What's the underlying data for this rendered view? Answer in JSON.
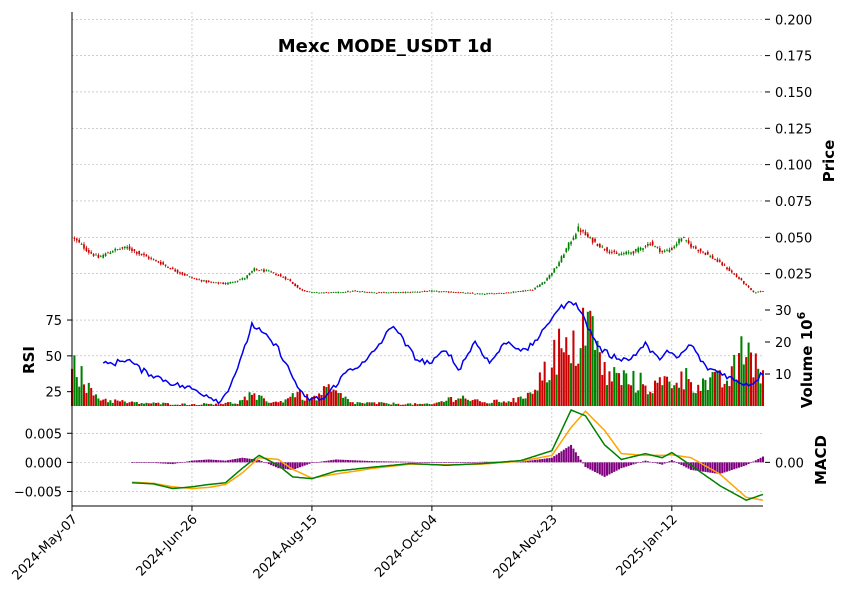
{
  "chart_data": {
    "type": "financial",
    "title": "Mexc MODE_USDT 1d",
    "x": {
      "start": "2024-05-07",
      "end": "2025-02-19",
      "tick_labels": [
        "2024-May-07",
        "2024-Jun-26",
        "2024-Aug-15",
        "2024-Oct-04",
        "2024-Nov-23",
        "2025-Jan-12"
      ]
    },
    "colors": {
      "up": "#008000",
      "down": "#cc0000",
      "rsi": "#0000ee",
      "macd_line": "#008000",
      "signal_line": "#ffa500",
      "histogram": "#800080",
      "grid": "#b0b0b0"
    },
    "price_panel": {
      "ylabel": "Price",
      "ylim": [
        0.0,
        0.205
      ],
      "ticks": [
        "0.200",
        "0.175",
        "0.150",
        "0.125",
        "0.100",
        "0.075",
        "0.050",
        "0.025"
      ],
      "tick_values": [
        0.2,
        0.175,
        0.15,
        0.125,
        0.1,
        0.075,
        0.05,
        0.025
      ],
      "close_anchors": [
        [
          "2024-05-07",
          0.05
        ],
        [
          "2024-05-10",
          0.046
        ],
        [
          "2024-05-14",
          0.04
        ],
        [
          "2024-05-18",
          0.036
        ],
        [
          "2024-05-24",
          0.041
        ],
        [
          "2024-05-30",
          0.043
        ],
        [
          "2024-06-05",
          0.038
        ],
        [
          "2024-06-12",
          0.033
        ],
        [
          "2024-06-19",
          0.027
        ],
        [
          "2024-06-26",
          0.022
        ],
        [
          "2024-07-03",
          0.019
        ],
        [
          "2024-07-10",
          0.018
        ],
        [
          "2024-07-18",
          0.022
        ],
        [
          "2024-07-22",
          0.028
        ],
        [
          "2024-07-29",
          0.026
        ],
        [
          "2024-08-05",
          0.021
        ],
        [
          "2024-08-10",
          0.014
        ],
        [
          "2024-08-15",
          0.012
        ],
        [
          "2024-08-25",
          0.012
        ],
        [
          "2024-09-01",
          0.013
        ],
        [
          "2024-09-10",
          0.012
        ],
        [
          "2024-09-20",
          0.012
        ],
        [
          "2024-10-04",
          0.013
        ],
        [
          "2024-10-15",
          0.012
        ],
        [
          "2024-10-25",
          0.011
        ],
        [
          "2024-11-05",
          0.012
        ],
        [
          "2024-11-15",
          0.014
        ],
        [
          "2024-11-20",
          0.02
        ],
        [
          "2024-11-25",
          0.03
        ],
        [
          "2024-11-30",
          0.045
        ],
        [
          "2024-12-04",
          0.056
        ],
        [
          "2024-12-08",
          0.05
        ],
        [
          "2024-12-14",
          0.043
        ],
        [
          "2024-12-20",
          0.038
        ],
        [
          "2024-12-27",
          0.04
        ],
        [
          "2025-01-03",
          0.046
        ],
        [
          "2025-01-08",
          0.04
        ],
        [
          "2025-01-12",
          0.042
        ],
        [
          "2025-01-16",
          0.05
        ],
        [
          "2025-01-20",
          0.044
        ],
        [
          "2025-01-27",
          0.038
        ],
        [
          "2025-02-03",
          0.03
        ],
        [
          "2025-02-10",
          0.02
        ],
        [
          "2025-02-15",
          0.012
        ],
        [
          "2025-02-19",
          0.013
        ]
      ],
      "first_day_high": 0.205,
      "volume": {
        "ylabel": "Volume  10^6",
        "ylim": [
          0,
          30
        ],
        "ticks": [
          "30",
          "20",
          "10"
        ],
        "tick_values": [
          30,
          20,
          10
        ],
        "exponent_label": "10",
        "exponent": "6",
        "volume_millions_anchors": [
          [
            "2024-05-07",
            20
          ],
          [
            "2024-05-12",
            6
          ],
          [
            "2024-05-20",
            2
          ],
          [
            "2024-06-01",
            1
          ],
          [
            "2024-06-26",
            0.5
          ],
          [
            "2024-07-15",
            1
          ],
          [
            "2024-07-20",
            3
          ],
          [
            "2024-08-01",
            1
          ],
          [
            "2024-08-08",
            4
          ],
          [
            "2024-08-15",
            2
          ],
          [
            "2024-08-22",
            5
          ],
          [
            "2024-09-01",
            1
          ],
          [
            "2024-10-04",
            0.5
          ],
          [
            "2024-10-15",
            3
          ],
          [
            "2024-10-25",
            1
          ],
          [
            "2024-11-10",
            2
          ],
          [
            "2024-11-20",
            10
          ],
          [
            "2024-11-25",
            18
          ],
          [
            "2024-12-01",
            14
          ],
          [
            "2024-12-07",
            28
          ],
          [
            "2024-12-15",
            10
          ],
          [
            "2024-12-25",
            8
          ],
          [
            "2025-01-05",
            6
          ],
          [
            "2025-01-15",
            9
          ],
          [
            "2025-01-25",
            7
          ],
          [
            "2025-02-05",
            8
          ],
          [
            "2025-02-12",
            18
          ],
          [
            "2025-02-19",
            10
          ]
        ]
      }
    },
    "rsi_panel": {
      "ylabel": "RSI",
      "ylim": [
        15,
        82
      ],
      "ticks": [
        "75",
        "50",
        "25"
      ],
      "tick_values": [
        75,
        50,
        25
      ],
      "rsi_anchors": [
        [
          "2024-05-20",
          44
        ],
        [
          "2024-05-25",
          45
        ],
        [
          "2024-05-30",
          48
        ],
        [
          "2024-06-05",
          40
        ],
        [
          "2024-06-12",
          35
        ],
        [
          "2024-06-19",
          30
        ],
        [
          "2024-06-26",
          27
        ],
        [
          "2024-07-03",
          22
        ],
        [
          "2024-07-08",
          18
        ],
        [
          "2024-07-12",
          30
        ],
        [
          "2024-07-17",
          50
        ],
        [
          "2024-07-21",
          72
        ],
        [
          "2024-07-26",
          65
        ],
        [
          "2024-08-01",
          55
        ],
        [
          "2024-08-07",
          35
        ],
        [
          "2024-08-12",
          20
        ],
        [
          "2024-08-20",
          20
        ],
        [
          "2024-08-25",
          30
        ],
        [
          "2024-08-30",
          40
        ],
        [
          "2024-09-06",
          45
        ],
        [
          "2024-09-13",
          60
        ],
        [
          "2024-09-18",
          72
        ],
        [
          "2024-09-23",
          58
        ],
        [
          "2024-09-28",
          47
        ],
        [
          "2024-10-04",
          45
        ],
        [
          "2024-10-10",
          55
        ],
        [
          "2024-10-15",
          40
        ],
        [
          "2024-10-22",
          60
        ],
        [
          "2024-10-28",
          45
        ],
        [
          "2024-11-04",
          60
        ],
        [
          "2024-11-12",
          53
        ],
        [
          "2024-11-20",
          68
        ],
        [
          "2024-11-24",
          80
        ],
        [
          "2024-11-28",
          85
        ],
        [
          "2024-12-03",
          88
        ],
        [
          "2024-12-08",
          70
        ],
        [
          "2024-12-13",
          55
        ],
        [
          "2024-12-18",
          50
        ],
        [
          "2024-12-25",
          47
        ],
        [
          "2025-01-01",
          58
        ],
        [
          "2025-01-06",
          48
        ],
        [
          "2025-01-10",
          53
        ],
        [
          "2025-01-14",
          48
        ],
        [
          "2025-01-20",
          58
        ],
        [
          "2025-01-26",
          42
        ],
        [
          "2025-02-02",
          38
        ],
        [
          "2025-02-08",
          32
        ],
        [
          "2025-02-14",
          30
        ],
        [
          "2025-02-19",
          38
        ]
      ]
    },
    "macd_panel": {
      "ylabel": "MACD",
      "ylim": [
        -0.0075,
        0.009
      ],
      "ticks": [
        "0.005",
        "0.000",
        "−0.005"
      ],
      "tick_values": [
        0.005,
        0.0,
        -0.005
      ],
      "right_tick": "0.00",
      "macd_anchors": [
        [
          "2024-06-01",
          -0.0035
        ],
        [
          "2024-06-10",
          -0.0037
        ],
        [
          "2024-06-18",
          -0.0045
        ],
        [
          "2024-06-26",
          -0.0042
        ],
        [
          "2024-07-03",
          -0.0038
        ],
        [
          "2024-07-10",
          -0.0035
        ],
        [
          "2024-07-17",
          -0.001
        ],
        [
          "2024-07-24",
          0.0012
        ],
        [
          "2024-08-01",
          -0.0005
        ],
        [
          "2024-08-07",
          -0.0025
        ],
        [
          "2024-08-15",
          -0.0028
        ],
        [
          "2024-08-25",
          -0.0015
        ],
        [
          "2024-09-10",
          -0.0008
        ],
        [
          "2024-09-25",
          -0.0002
        ],
        [
          "2024-10-10",
          -0.0005
        ],
        [
          "2024-10-25",
          -0.0002
        ],
        [
          "2024-11-10",
          0.0003
        ],
        [
          "2024-11-23",
          0.002
        ],
        [
          "2024-12-01",
          0.009
        ],
        [
          "2024-12-07",
          0.008
        ],
        [
          "2024-12-15",
          0.003
        ],
        [
          "2024-12-22",
          0.0005
        ],
        [
          "2025-01-01",
          0.0015
        ],
        [
          "2025-01-08",
          0.0008
        ],
        [
          "2025-01-12",
          0.0017
        ],
        [
          "2025-01-20",
          -0.0005
        ],
        [
          "2025-02-01",
          -0.004
        ],
        [
          "2025-02-12",
          -0.0065
        ],
        [
          "2025-02-19",
          -0.0055
        ]
      ],
      "signal_anchors": [
        [
          "2024-06-01",
          -0.0034
        ],
        [
          "2024-06-10",
          -0.0036
        ],
        [
          "2024-06-18",
          -0.0042
        ],
        [
          "2024-06-26",
          -0.0045
        ],
        [
          "2024-07-03",
          -0.0043
        ],
        [
          "2024-07-10",
          -0.0038
        ],
        [
          "2024-07-17",
          -0.0018
        ],
        [
          "2024-07-24",
          0.0008
        ],
        [
          "2024-08-01",
          0.0005
        ],
        [
          "2024-08-07",
          -0.0012
        ],
        [
          "2024-08-15",
          -0.0027
        ],
        [
          "2024-08-25",
          -0.002
        ],
        [
          "2024-09-10",
          -0.001
        ],
        [
          "2024-09-25",
          -0.0003
        ],
        [
          "2024-10-10",
          -0.0004
        ],
        [
          "2024-10-25",
          -0.0003
        ],
        [
          "2024-11-10",
          0.0002
        ],
        [
          "2024-11-23",
          0.0012
        ],
        [
          "2024-12-01",
          0.006
        ],
        [
          "2024-12-07",
          0.0088
        ],
        [
          "2024-12-15",
          0.0055
        ],
        [
          "2024-12-22",
          0.0015
        ],
        [
          "2025-01-01",
          0.0012
        ],
        [
          "2025-01-08",
          0.0012
        ],
        [
          "2025-01-12",
          0.0013
        ],
        [
          "2025-01-20",
          0.0008
        ],
        [
          "2025-02-01",
          -0.002
        ],
        [
          "2025-02-12",
          -0.006
        ],
        [
          "2025-02-19",
          -0.0065
        ]
      ]
    },
    "grid": true
  }
}
